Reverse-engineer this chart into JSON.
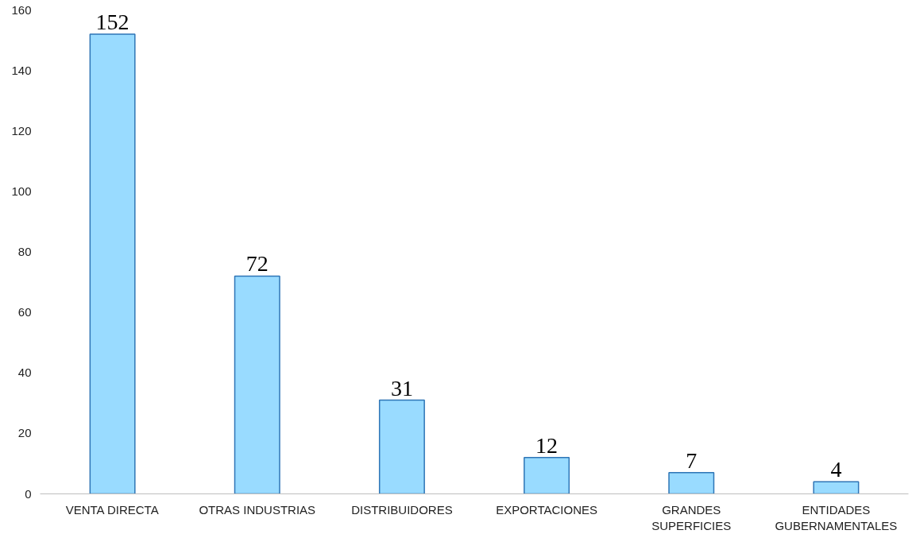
{
  "chart_data": {
    "type": "bar",
    "categories": [
      "VENTA DIRECTA",
      "OTRAS INDUSTRIAS",
      "DISTRIBUIDORES",
      "EXPORTACIONES",
      "GRANDES SUPERFICIES",
      "ENTIDADES GUBERNAMENTALES"
    ],
    "values": [
      152,
      72,
      31,
      12,
      7,
      4
    ],
    "color": "#99dbff",
    "ylim": [
      0,
      160
    ],
    "yticks": [
      0,
      20,
      40,
      60,
      80,
      100,
      120,
      140,
      160
    ],
    "grid": false,
    "data_labels": true
  }
}
